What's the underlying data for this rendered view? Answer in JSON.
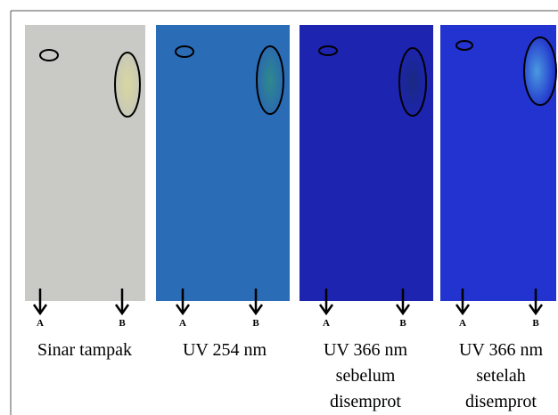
{
  "plates": [
    {
      "spots": [
        "A",
        "B"
      ],
      "caption": [
        "Sinar tampak"
      ]
    },
    {
      "spots": [
        "A",
        "B"
      ],
      "caption": [
        "UV 254 nm"
      ]
    },
    {
      "spots": [
        "A",
        "B"
      ],
      "caption": [
        "UV 366 nm",
        "sebelum",
        "disemprot"
      ]
    },
    {
      "spots": [
        "A",
        "B"
      ],
      "caption": [
        "UV 366 nm",
        "setelah",
        "disemprot"
      ]
    }
  ]
}
